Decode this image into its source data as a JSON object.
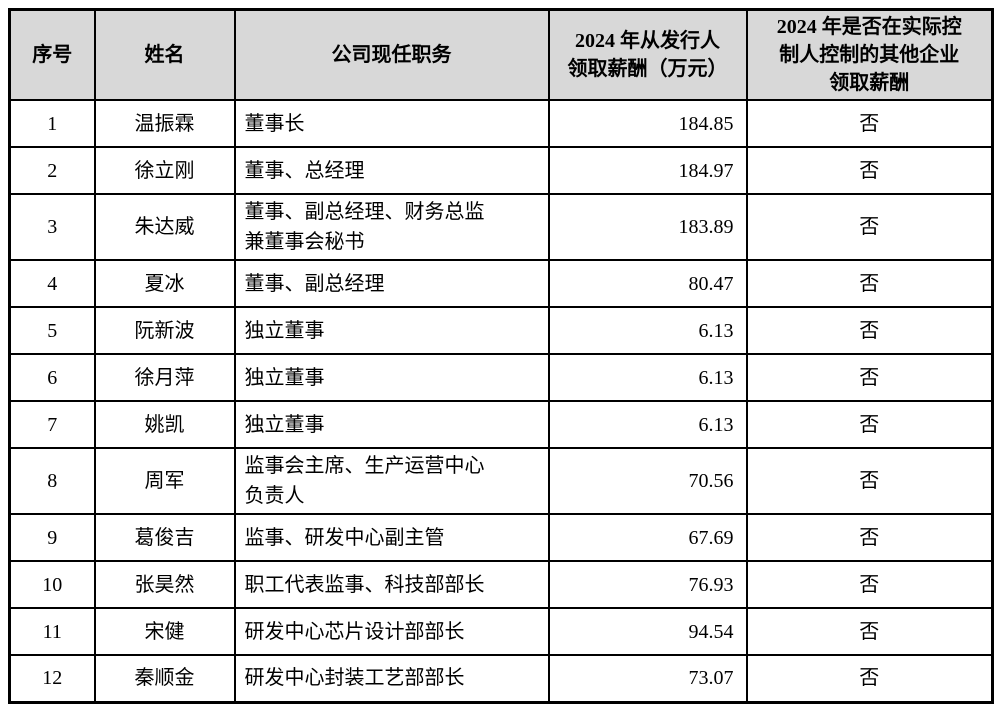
{
  "colors": {
    "header_bg": "#d8d8d8",
    "border": "#000000",
    "text": "#000000",
    "page_bg": "#ffffff"
  },
  "table": {
    "columns": [
      {
        "key": "index",
        "label": "序号"
      },
      {
        "key": "name",
        "label": "姓名"
      },
      {
        "key": "position",
        "label": "公司现任职务"
      },
      {
        "key": "salary",
        "label": "2024 年从发行人\n领取薪酬（万元）"
      },
      {
        "key": "other",
        "label": "2024 年是否在实际控\n制人控制的其他企业\n领取薪酬"
      }
    ],
    "rows": [
      {
        "index": "1",
        "name": "温振霖",
        "position": "董事长",
        "salary": "184.85",
        "other": "否"
      },
      {
        "index": "2",
        "name": "徐立刚",
        "position": "董事、总经理",
        "salary": "184.97",
        "other": "否"
      },
      {
        "index": "3",
        "name": "朱达威",
        "position": "董事、副总经理、财务总监\n兼董事会秘书",
        "salary": "183.89",
        "other": "否"
      },
      {
        "index": "4",
        "name": "夏冰",
        "position": "董事、副总经理",
        "salary": "80.47",
        "other": "否"
      },
      {
        "index": "5",
        "name": "阮新波",
        "position": "独立董事",
        "salary": "6.13",
        "other": "否"
      },
      {
        "index": "6",
        "name": "徐月萍",
        "position": "独立董事",
        "salary": "6.13",
        "other": "否"
      },
      {
        "index": "7",
        "name": "姚凯",
        "position": "独立董事",
        "salary": "6.13",
        "other": "否"
      },
      {
        "index": "8",
        "name": "周军",
        "position": "监事会主席、生产运营中心\n负责人",
        "salary": "70.56",
        "other": "否"
      },
      {
        "index": "9",
        "name": "葛俊吉",
        "position": "监事、研发中心副主管",
        "salary": "67.69",
        "other": "否"
      },
      {
        "index": "10",
        "name": "张昊然",
        "position": "职工代表监事、科技部部长",
        "salary": "76.93",
        "other": "否"
      },
      {
        "index": "11",
        "name": "宋健",
        "position": "研发中心芯片设计部部长",
        "salary": "94.54",
        "other": "否"
      },
      {
        "index": "12",
        "name": "秦顺金",
        "position": "研发中心封装工艺部部长",
        "salary": "73.07",
        "other": "否"
      }
    ]
  }
}
